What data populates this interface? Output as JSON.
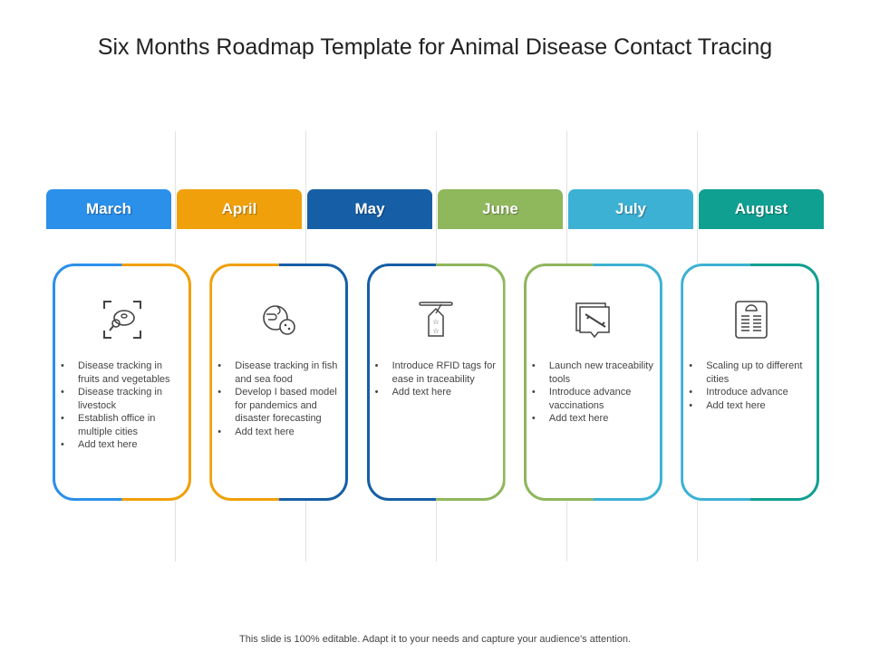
{
  "title": "Six Months Roadmap Template for Animal Disease Contact Tracing",
  "months": [
    {
      "label": "March",
      "color": "#2b90ea"
    },
    {
      "label": "April",
      "color": "#f0a00a"
    },
    {
      "label": "May",
      "color": "#165fa6"
    },
    {
      "label": "June",
      "color": "#8fb75c"
    },
    {
      "label": "July",
      "color": "#3cb1d4"
    },
    {
      "label": "August",
      "color": "#10a091"
    }
  ],
  "cards": [
    {
      "icon": "bacteria-magnifier-icon",
      "items": [
        "Disease tracking in fruits and vegetables",
        "Disease tracking in livestock",
        "Establish office in multiple cities",
        "Add text here"
      ]
    },
    {
      "icon": "globe-virus-icon",
      "items": [
        "Disease tracking in fish and sea food",
        "Develop I based model for pandemics and disaster forecasting",
        "Add text here"
      ]
    },
    {
      "icon": "rfid-tag-icon",
      "items": [
        "Introduce RFID tags for ease in traceability",
        "Add text here"
      ]
    },
    {
      "icon": "syringe-screen-icon",
      "items": [
        "Launch new traceability tools",
        "Introduce advance vaccinations",
        "Add text here"
      ]
    },
    {
      "icon": "scale-report-icon",
      "items": [
        "Scaling up to different cities",
        "Introduce advance",
        "Add text here"
      ]
    }
  ],
  "footer": "This slide is 100% editable. Adapt it to your needs and capture your audience's attention."
}
